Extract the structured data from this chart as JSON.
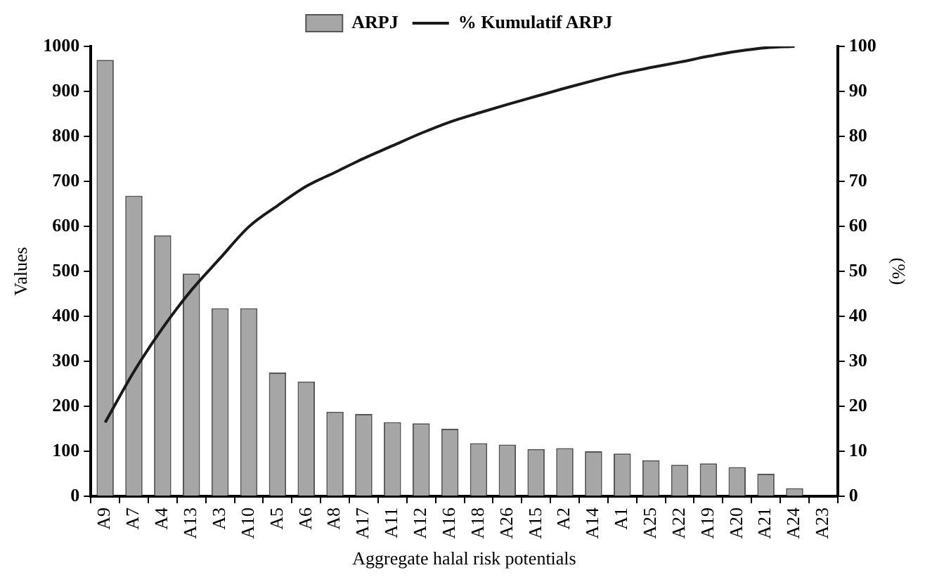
{
  "chart_data": {
    "type": "bar",
    "xlabel": "Aggregate halal risk potentials",
    "ylabel": "Values",
    "y2label": "(%)",
    "categories": [
      "A9",
      "A7",
      "A4",
      "A13",
      "A3",
      "A10",
      "A5",
      "A6",
      "A8",
      "A17",
      "A11",
      "A12",
      "A16",
      "A18",
      "A26",
      "A15",
      "A2",
      "A14",
      "A1",
      "A25",
      "A22",
      "A19",
      "A20",
      "A21",
      "A24",
      "A23"
    ],
    "series": [
      {
        "name": "ARPJ",
        "color": "#a6a6a6",
        "values": [
          970,
          668,
          580,
          495,
          418,
          418,
          275,
          255,
          188,
          183,
          165,
          162,
          150,
          118,
          115,
          105,
          107,
          100,
          95,
          80,
          70,
          73,
          65,
          50,
          18,
          null
        ]
      },
      {
        "name": "% Kumulatif ARPJ",
        "type": "line",
        "axis": "y2",
        "color": "#1a1a1a",
        "values": [
          16.4,
          27.7,
          37.4,
          45.8,
          52.9,
          59.9,
          64.6,
          68.9,
          72.0,
          75.1,
          77.9,
          80.7,
          83.2,
          85.2,
          87.1,
          88.9,
          90.7,
          92.4,
          94.0,
          95.3,
          96.5,
          97.8,
          98.9,
          99.7,
          100,
          null
        ]
      }
    ],
    "ylim": [
      0,
      1000
    ],
    "yticks": [
      0,
      100,
      200,
      300,
      400,
      500,
      600,
      700,
      800,
      900,
      1000
    ],
    "y2lim": [
      0,
      100
    ],
    "y2ticks": [
      0,
      10,
      20,
      30,
      40,
      50,
      60,
      70,
      80,
      90,
      100
    ],
    "grid": false,
    "legend": "top",
    "marker": "none",
    "line_style": "solid"
  }
}
